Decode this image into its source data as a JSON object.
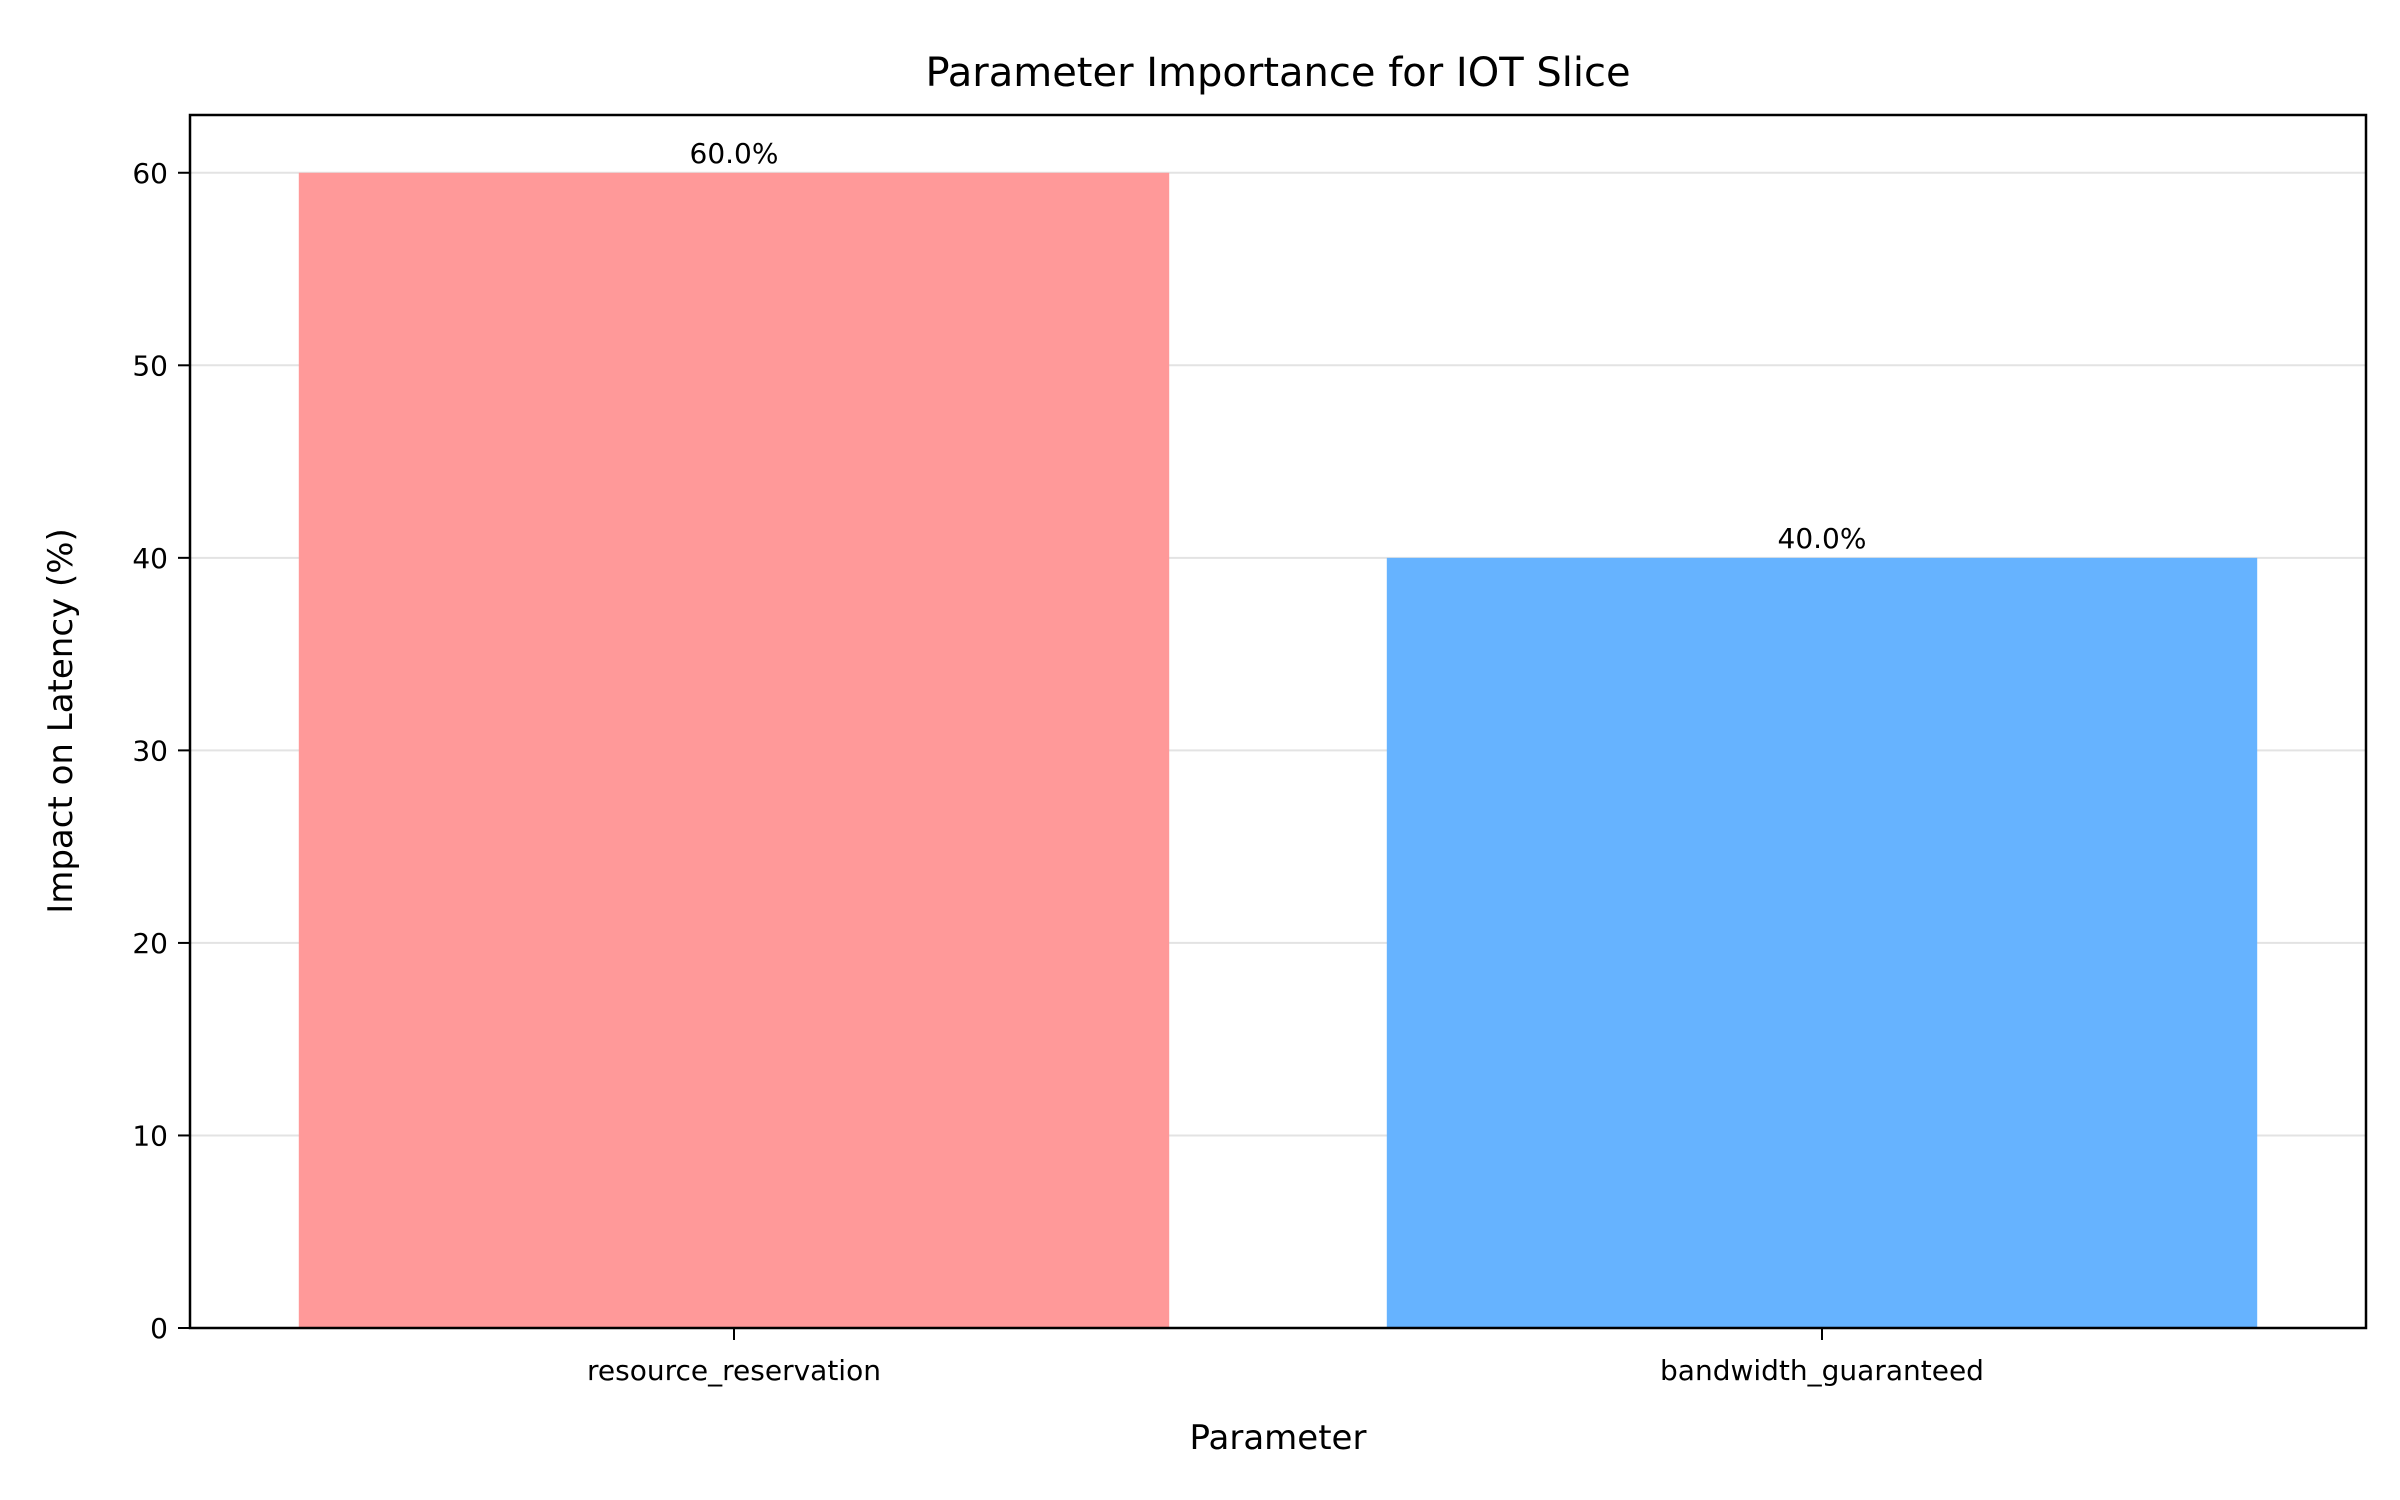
{
  "chart_data": {
    "type": "bar",
    "title": "Parameter Importance for IOT Slice",
    "xlabel": "Parameter",
    "ylabel": "Impact on Latency (%)",
    "categories": [
      "resource_reservation",
      "bandwidth_guaranteed"
    ],
    "values": [
      60.0,
      40.0
    ],
    "data_labels": [
      "60.0%",
      "40.0%"
    ],
    "colors": [
      "#ff9999",
      "#66b3ff"
    ],
    "ylim": [
      0,
      63
    ],
    "yticks": [
      0,
      10,
      20,
      30,
      40,
      50,
      60
    ],
    "grid": "y-axis, light gray",
    "legend": "none"
  }
}
